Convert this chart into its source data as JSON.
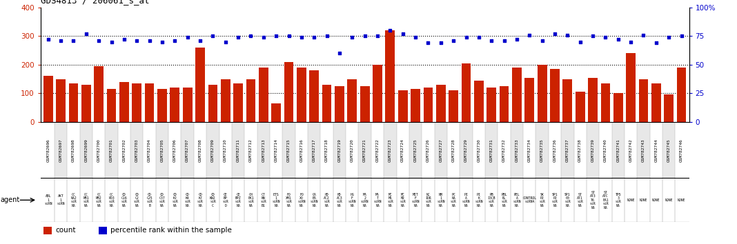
{
  "title": "GDS4813 / 206061_s_at",
  "bar_color": "#cc2200",
  "dot_color": "#0000cc",
  "bg_color": "#ffffff",
  "agent_bg": "#99cc99",
  "gsm_bg": "#dddddd",
  "ylim_left": [
    0,
    400
  ],
  "ylim_right": [
    0,
    100
  ],
  "yticks_left": [
    0,
    100,
    200,
    300,
    400
  ],
  "yticks_right": [
    0,
    25,
    50,
    75,
    100
  ],
  "categories": [
    "GSM782696",
    "GSM782697",
    "GSM782698",
    "GSM782699",
    "GSM782700",
    "GSM782701",
    "GSM782702",
    "GSM782703",
    "GSM782704",
    "GSM782705",
    "GSM782706",
    "GSM782707",
    "GSM782708",
    "GSM782709",
    "GSM782710",
    "GSM782711",
    "GSM782712",
    "GSM782713",
    "GSM782714",
    "GSM782715",
    "GSM782716",
    "GSM782717",
    "GSM782718",
    "GSM782719",
    "GSM782720",
    "GSM782721",
    "GSM782722",
    "GSM782723",
    "GSM782724",
    "GSM782725",
    "GSM782726",
    "GSM782727",
    "GSM782728",
    "GSM782729",
    "GSM782730",
    "GSM782731",
    "GSM782732",
    "GSM782733",
    "GSM782734",
    "GSM782735",
    "GSM782736",
    "GSM782737",
    "GSM782738",
    "GSM782739",
    "GSM782740",
    "GSM782741",
    "GSM782742",
    "GSM782743",
    "GSM782744",
    "GSM782745",
    "GSM782746"
  ],
  "bar_values": [
    160,
    150,
    135,
    130,
    195,
    115,
    140,
    135,
    135,
    115,
    120,
    120,
    260,
    130,
    150,
    135,
    150,
    190,
    65,
    210,
    190,
    180,
    130,
    125,
    150,
    125,
    200,
    320,
    110,
    115,
    120,
    130,
    110,
    205,
    145,
    120,
    125,
    190,
    155,
    200,
    185,
    150,
    105,
    155,
    135,
    100,
    240,
    150,
    135,
    95,
    190
  ],
  "dot_values": [
    72,
    71,
    71,
    77,
    71,
    70,
    72,
    71,
    71,
    70,
    71,
    74,
    71,
    75,
    70,
    74,
    75,
    74,
    75,
    75,
    74,
    74,
    75,
    60,
    74,
    75,
    75,
    80,
    77,
    74,
    69,
    69,
    71,
    74,
    74,
    71,
    71,
    72,
    76,
    71,
    77,
    76,
    70,
    75,
    74,
    72,
    70,
    76,
    69,
    74,
    75
  ],
  "agent_labels": [
    "ABL\n1\nsiRN",
    "AKT\n1\nsiRN",
    "CC\nNA2\nsiR\nNA",
    "CC\nNB1\nsiR\nNA",
    "CC\nNB2\nsiR\nNA",
    "CC\nND3\nsiR\nNA",
    "CD\nC16\nsiR\nNA",
    "CD\nC2\nsiR\nNA",
    "CD\nC25\nsiR\nB",
    "CD\nC37\nsiR\nNA",
    "CD\nK2\nsiR\nNA",
    "CD\nK4\nsiR\nNA",
    "CD\nK7\nsiR\nNA",
    "CD\nKN2\nsiR\nC",
    "CE\nBP\nsiR\nD",
    "CE\nBPZ\nsiR\nNA",
    "CH\nEK1\nsiR\nNA",
    "CT\nNN\nsiR\nB1",
    "ETS\n1\nsiRN\nNA",
    "FO\nXM1\nsiR\nNA",
    "FO\nXO\nsiRN\nNA",
    "GA\nBA\nsiRN\nNA",
    "HD\nAC2\nsiR\nNA",
    "HD\nAC3\nsiR\nNA",
    "HS\nF\nsiRN\nNA",
    "MA\n2\nsiRN\nNA",
    "MA\nT\nsiRN\nNA",
    "MC\nM1\nsiR\nNA",
    "MC\nM2\nsiR\nNA",
    "MIT\nF\nsiRN\nNA",
    "NC\nIOR\nsiR\nNA",
    "NM\n1\nsiRN\nNA",
    "PC\nNA\nsiR\nNA",
    "PI\nA\nsiRN\nNA",
    "PI\nK\nsiRN\nNA",
    "RB\n13CB\nsiR\nNA",
    "RBL\nBL\nsiR\nNA",
    "REL\nA\nsiRN\nNA",
    "CONTROL\nsiRNA",
    "SK\nP2\nsiR\nNA",
    "SP1\nP2\nsiR\nNA",
    "SP1\n00\nsiR\nNA",
    "ST\nAT1\nsiR\nNA",
    "ST\nAT3\nT6\nsiR\nNA",
    "ST\nATC\nEA1\nsiR\nNA",
    "TP5\n3\nsiR\nNA",
    "NONE",
    "NONE",
    "NONE",
    "NONE",
    "NONE"
  ],
  "legend_labels": [
    "count",
    "percentile rank within the sample"
  ]
}
